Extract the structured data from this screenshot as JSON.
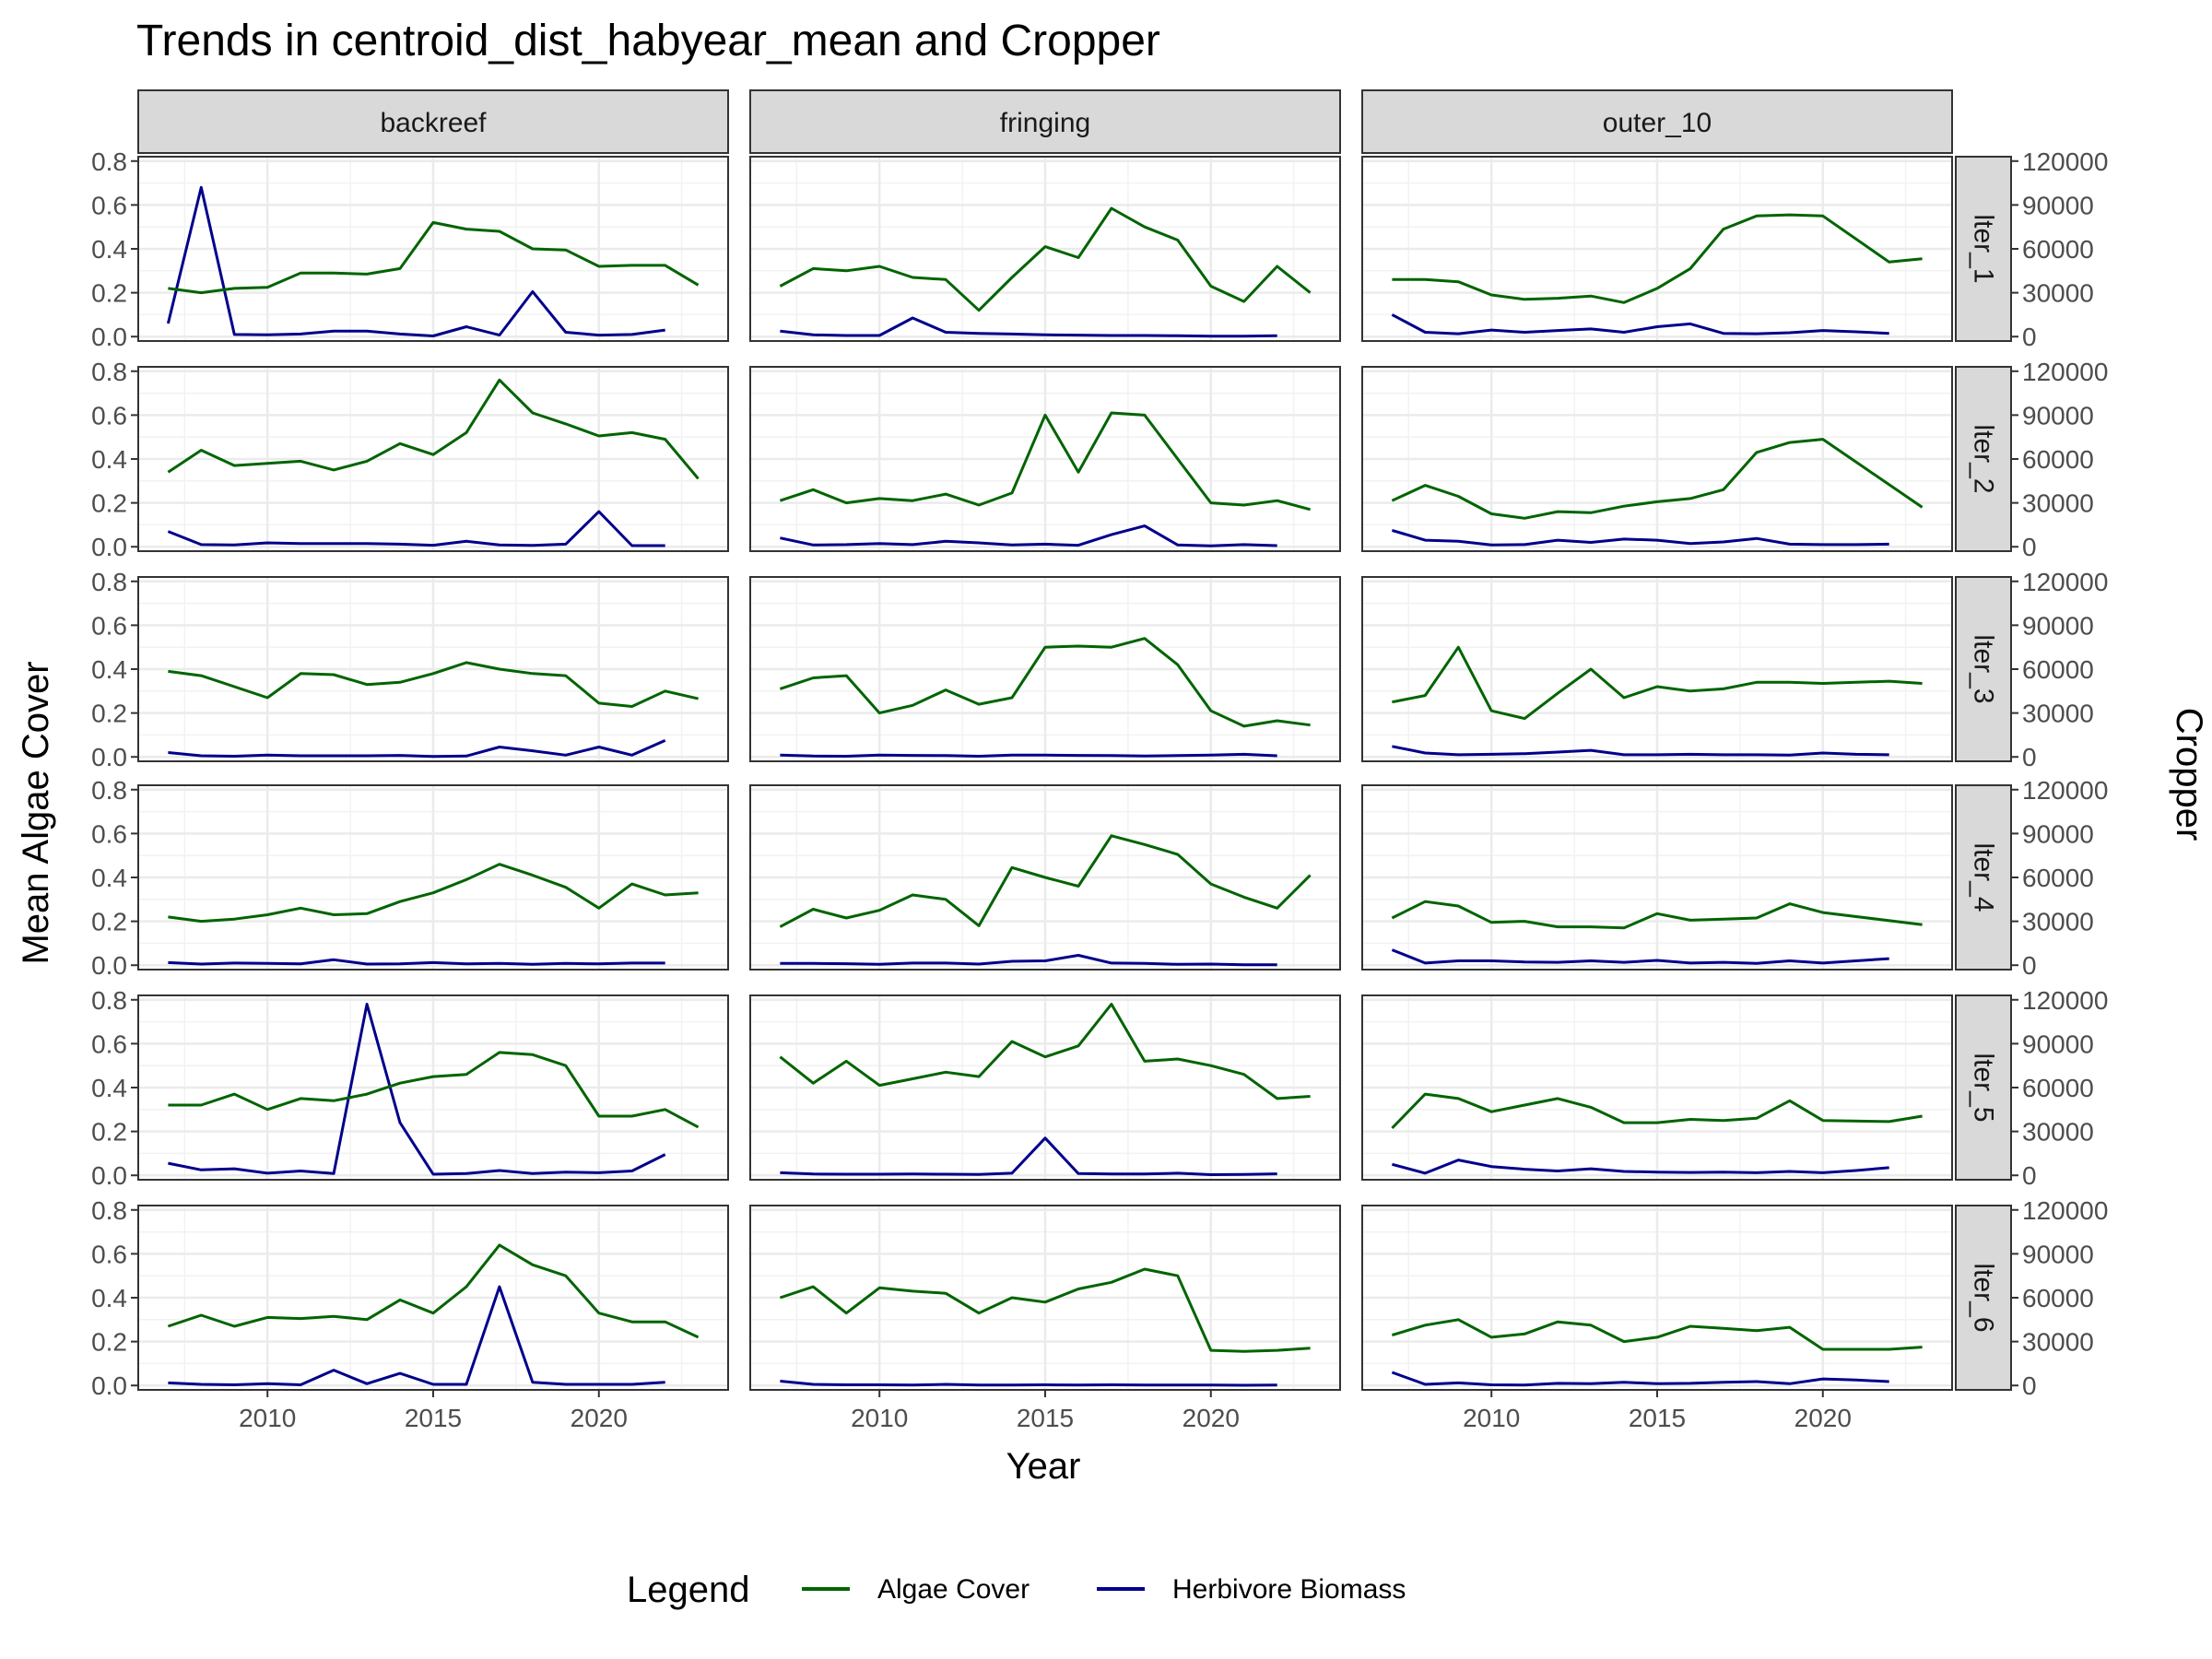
{
  "chart_data": {
    "type": "line",
    "title": "Trends in centroid_dist_habyear_mean and Cropper",
    "xlabel": "Year",
    "ylabel": "Mean Algae Cover",
    "y2label": "Cropper",
    "x_ticks": [
      2010,
      2015,
      2020
    ],
    "xlim": [
      2006.1,
      2023.9
    ],
    "y_ticks": [
      0.0,
      0.2,
      0.4,
      0.6,
      0.8
    ],
    "y_tick_labels": [
      "0.0",
      "0.2",
      "0.4",
      "0.6",
      "0.8"
    ],
    "ylim": [
      -0.02,
      0.82
    ],
    "y2_ticks": [
      0,
      30000,
      60000,
      90000,
      120000
    ],
    "y2_tick_labels": [
      "0",
      "30000",
      "60000",
      "90000",
      "120000"
    ],
    "y2_per_y": 150000,
    "grid": true,
    "facet_columns": [
      "backreef",
      "fringing",
      "outer_10"
    ],
    "facet_rows": [
      "lter_1",
      "lter_2",
      "lter_3",
      "lter_4",
      "lter_5",
      "lter_6"
    ],
    "legend": {
      "title": "Legend",
      "position": "bottom",
      "entries": [
        {
          "label": "Algae Cover",
          "color": "#006400"
        },
        {
          "label": "Herbivore Biomass",
          "color": "#00008B"
        }
      ]
    },
    "algae_years": [
      2007,
      2008,
      2009,
      2010,
      2011,
      2012,
      2013,
      2014,
      2015,
      2016,
      2017,
      2018,
      2019,
      2020,
      2021,
      2022,
      2023
    ],
    "herb_years": [
      2007,
      2008,
      2009,
      2010,
      2011,
      2012,
      2013,
      2014,
      2015,
      2016,
      2017,
      2018,
      2019,
      2020,
      2021,
      2022
    ],
    "panels": [
      [
        {
          "algae": [
            0.22,
            0.2,
            0.22,
            0.225,
            0.29,
            0.29,
            0.285,
            0.31,
            0.52,
            0.49,
            0.48,
            0.4,
            0.395,
            0.32,
            0.325,
            0.325,
            0.235
          ],
          "herb": [
            0.06,
            0.68,
            0.01,
            0.008,
            0.012,
            0.025,
            0.025,
            0.012,
            0.003,
            0.045,
            0.007,
            0.205,
            0.02,
            0.007,
            0.01,
            0.03
          ]
        },
        {
          "algae": [
            0.23,
            0.31,
            0.3,
            0.32,
            0.27,
            0.26,
            0.12,
            0.27,
            0.41,
            0.36,
            0.585,
            0.5,
            0.44,
            0.23,
            0.16,
            0.32,
            0.2
          ],
          "herb": [
            0.025,
            0.008,
            0.005,
            0.005,
            0.085,
            0.02,
            0.015,
            0.012,
            0.008,
            0.007,
            0.005,
            0.005,
            0.004,
            0.002,
            0.002,
            0.004
          ]
        },
        {
          "algae": [
            0.26,
            0.26,
            0.25,
            0.19,
            0.17,
            0.175,
            0.185,
            0.155,
            0.22,
            0.31,
            0.49,
            0.55,
            0.555,
            0.55,
            null,
            0.34,
            0.355
          ],
          "herb": [
            0.1,
            0.02,
            0.013,
            0.03,
            0.02,
            0.028,
            0.035,
            0.02,
            0.045,
            0.058,
            0.015,
            0.013,
            0.018,
            0.028,
            0.022,
            0.015
          ]
        }
      ],
      [
        {
          "algae": [
            0.34,
            0.44,
            0.37,
            0.38,
            0.39,
            0.35,
            0.39,
            0.47,
            0.42,
            0.52,
            0.76,
            0.61,
            0.56,
            0.505,
            0.52,
            0.49,
            0.31
          ],
          "herb": [
            0.07,
            0.01,
            0.008,
            0.018,
            0.015,
            0.015,
            0.015,
            0.012,
            0.007,
            0.025,
            0.008,
            0.006,
            0.012,
            0.16,
            0.005,
            0.005
          ]
        },
        {
          "algae": [
            0.21,
            0.26,
            0.2,
            0.22,
            0.21,
            0.24,
            0.19,
            0.245,
            0.6,
            0.34,
            0.61,
            0.6,
            0.4,
            0.2,
            0.19,
            0.21,
            0.17
          ],
          "herb": [
            0.04,
            0.008,
            0.01,
            0.015,
            0.01,
            0.025,
            0.018,
            0.008,
            0.012,
            0.007,
            0.055,
            0.095,
            0.008,
            0.004,
            0.01,
            0.005
          ]
        },
        {
          "algae": [
            0.21,
            0.28,
            0.23,
            0.15,
            0.13,
            0.16,
            0.155,
            0.185,
            0.205,
            0.22,
            0.26,
            0.43,
            0.475,
            0.49,
            null,
            null,
            0.18
          ],
          "herb": [
            0.075,
            0.03,
            0.025,
            0.008,
            0.01,
            0.03,
            0.02,
            0.035,
            0.03,
            0.015,
            0.022,
            0.038,
            0.012,
            0.01,
            0.01,
            0.012
          ]
        }
      ],
      [
        {
          "algae": [
            0.39,
            0.37,
            0.32,
            0.27,
            0.38,
            0.375,
            0.33,
            0.34,
            0.38,
            0.43,
            0.4,
            0.38,
            0.37,
            0.245,
            0.23,
            0.3,
            0.265
          ],
          "herb": [
            0.02,
            0.005,
            0.003,
            0.008,
            0.005,
            0.005,
            0.005,
            0.007,
            0.002,
            0.004,
            0.045,
            0.028,
            0.008,
            0.045,
            0.008,
            0.075
          ]
        },
        {
          "algae": [
            0.31,
            0.36,
            0.37,
            0.2,
            0.235,
            0.305,
            0.24,
            0.27,
            0.5,
            0.505,
            0.5,
            0.54,
            0.42,
            0.21,
            0.14,
            0.165,
            0.145
          ],
          "herb": [
            0.008,
            0.004,
            0.003,
            0.008,
            0.007,
            0.006,
            0.003,
            0.008,
            0.008,
            0.007,
            0.006,
            0.004,
            0.006,
            0.008,
            0.012,
            0.005
          ]
        },
        {
          "algae": [
            0.25,
            0.28,
            0.5,
            0.21,
            0.175,
            0.29,
            0.4,
            0.27,
            0.32,
            0.3,
            0.31,
            0.34,
            0.34,
            0.335,
            0.34,
            0.345,
            0.335
          ],
          "herb": [
            0.048,
            0.018,
            0.01,
            0.012,
            0.015,
            0.022,
            0.03,
            0.01,
            0.01,
            0.012,
            0.01,
            0.01,
            0.008,
            0.018,
            0.012,
            0.01
          ]
        }
      ],
      [
        {
          "algae": [
            0.22,
            0.2,
            0.21,
            0.23,
            0.26,
            0.23,
            0.235,
            0.29,
            0.33,
            0.39,
            0.46,
            0.41,
            0.355,
            0.26,
            0.37,
            0.32,
            0.33
          ],
          "herb": [
            0.012,
            0.005,
            0.01,
            0.008,
            0.006,
            0.025,
            0.005,
            0.006,
            0.012,
            0.006,
            0.008,
            0.004,
            0.008,
            0.006,
            0.01,
            0.01
          ]
        },
        {
          "algae": [
            0.175,
            0.255,
            0.215,
            0.25,
            0.32,
            0.3,
            0.18,
            0.445,
            0.4,
            0.36,
            0.59,
            0.55,
            0.505,
            0.37,
            0.31,
            0.26,
            0.41
          ],
          "herb": [
            0.008,
            0.008,
            0.007,
            0.004,
            0.01,
            0.01,
            0.005,
            0.018,
            0.02,
            0.045,
            0.01,
            0.008,
            0.004,
            0.005,
            0.002,
            0.002
          ]
        },
        {
          "algae": [
            0.215,
            0.29,
            0.27,
            0.195,
            0.2,
            0.175,
            0.175,
            0.17,
            0.235,
            0.205,
            0.21,
            0.215,
            0.28,
            0.24,
            null,
            null,
            0.185
          ],
          "herb": [
            0.07,
            0.01,
            0.02,
            0.02,
            0.015,
            0.013,
            0.02,
            0.013,
            0.022,
            0.01,
            0.013,
            0.008,
            0.02,
            0.01,
            0.02,
            0.03
          ]
        }
      ],
      [
        {
          "algae": [
            0.32,
            0.32,
            0.37,
            0.3,
            0.35,
            0.34,
            0.37,
            0.42,
            0.45,
            0.46,
            0.56,
            0.55,
            0.5,
            0.27,
            0.27,
            0.3,
            0.22
          ],
          "herb": [
            0.055,
            0.025,
            0.03,
            0.01,
            0.02,
            0.008,
            0.78,
            0.24,
            0.005,
            0.008,
            0.022,
            0.008,
            0.015,
            0.012,
            0.02,
            0.095
          ]
        },
        {
          "algae": [
            0.54,
            0.42,
            0.52,
            0.41,
            0.44,
            0.47,
            0.45,
            0.61,
            0.54,
            0.59,
            0.78,
            0.52,
            0.53,
            0.5,
            0.46,
            0.35,
            0.36
          ],
          "herb": [
            0.012,
            0.006,
            0.005,
            0.005,
            0.006,
            0.005,
            0.004,
            0.01,
            0.17,
            0.008,
            0.006,
            0.006,
            0.01,
            0.003,
            0.004,
            0.007
          ]
        },
        {
          "algae": [
            0.215,
            0.37,
            0.35,
            0.29,
            0.32,
            0.35,
            0.31,
            0.24,
            0.24,
            0.255,
            0.25,
            0.26,
            0.34,
            0.25,
            null,
            0.245,
            0.27
          ],
          "herb": [
            0.05,
            0.01,
            0.07,
            0.04,
            0.028,
            0.02,
            0.03,
            0.018,
            0.015,
            0.013,
            0.015,
            0.012,
            0.018,
            0.012,
            0.022,
            0.035
          ]
        }
      ],
      [
        {
          "algae": [
            0.27,
            0.32,
            0.27,
            0.31,
            0.305,
            0.315,
            0.3,
            0.39,
            0.33,
            0.45,
            0.64,
            0.55,
            0.5,
            0.33,
            0.29,
            0.29,
            0.22
          ],
          "herb": [
            0.012,
            0.005,
            0.003,
            0.008,
            0.003,
            0.07,
            0.008,
            0.055,
            0.005,
            0.005,
            0.45,
            0.015,
            0.005,
            0.005,
            0.005,
            0.015
          ]
        },
        {
          "algae": [
            0.4,
            0.45,
            0.33,
            0.445,
            0.43,
            0.42,
            0.33,
            0.4,
            0.38,
            0.44,
            0.47,
            0.53,
            0.5,
            0.16,
            0.155,
            0.16,
            0.17
          ],
          "herb": [
            0.02,
            0.005,
            0.003,
            0.003,
            0.002,
            0.005,
            0.002,
            0.002,
            0.003,
            0.002,
            0.003,
            0.002,
            0.002,
            0.002,
            0.001,
            0.002
          ]
        },
        {
          "algae": [
            0.23,
            0.275,
            0.3,
            0.22,
            0.235,
            0.29,
            0.275,
            0.2,
            0.22,
            0.27,
            0.26,
            0.25,
            0.265,
            0.165,
            null,
            0.165,
            0.175
          ],
          "herb": [
            0.06,
            0.005,
            0.012,
            0.003,
            0.002,
            0.01,
            0.008,
            0.015,
            0.008,
            0.01,
            0.015,
            0.018,
            0.008,
            0.03,
            0.025,
            0.018
          ]
        }
      ]
    ]
  }
}
